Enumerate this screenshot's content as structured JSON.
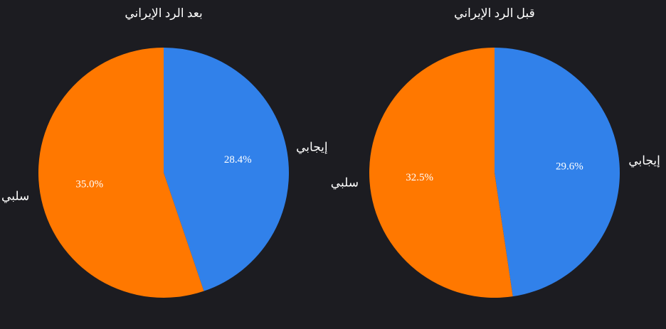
{
  "chart_data": [
    {
      "type": "pie",
      "title": "بعد الرد الإيراني",
      "categories": [
        "إيجابي",
        "سلبي"
      ],
      "values": [
        28.4,
        35.0
      ],
      "value_labels": [
        "28.4%",
        "35.0%"
      ],
      "colors": [
        "#3181ea",
        "#ff7800"
      ]
    },
    {
      "type": "pie",
      "title": "قبل الرد الإيراني",
      "categories": [
        "إيجابي",
        "سلبي"
      ],
      "values": [
        29.6,
        32.5
      ],
      "value_labels": [
        "29.6%",
        "32.5%"
      ],
      "colors": [
        "#3181ea",
        "#ff7800"
      ]
    }
  ]
}
